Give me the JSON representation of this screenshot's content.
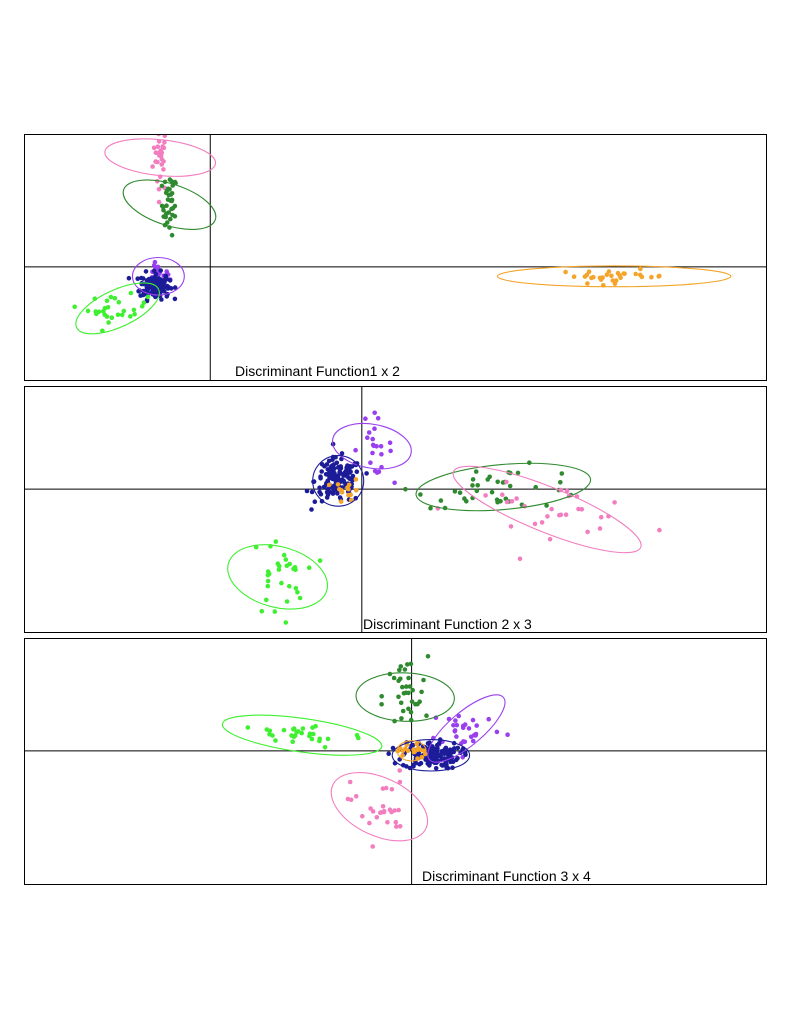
{
  "colors": {
    "navy": "#1c1c99",
    "purple": "#9a3ff0",
    "pink": "#f27ec0",
    "dark_green": "#2f8a2f",
    "light_green": "#3ef02f",
    "orange": "#f4a42a"
  },
  "chart_data": [
    {
      "type": "scatter",
      "title": "Discriminant Function1 x 2",
      "axis_lines": "cross at origin",
      "xlim": [
        -10,
        30
      ],
      "ylim": [
        -6,
        7
      ],
      "groups": [
        {
          "color": "pink",
          "center": [
            -2.7,
            5.8
          ],
          "n": 28,
          "spread": [
            0.2,
            0.9
          ],
          "ellipse": {
            "rx": 0.95,
            "ry": 3.0,
            "angle": -84
          }
        },
        {
          "color": "dark_green",
          "center": [
            -2.2,
            3.3
          ],
          "n": 38,
          "spread": [
            0.2,
            0.8
          ],
          "ellipse": {
            "rx": 1.1,
            "ry": 2.6,
            "angle": -72
          }
        },
        {
          "color": "purple",
          "center": [
            -2.8,
            -0.5
          ],
          "n": 30,
          "spread": [
            0.3,
            0.3
          ],
          "ellipse": {
            "rx": 1.4,
            "ry": 1.0,
            "angle": 0
          }
        },
        {
          "color": "navy",
          "center": [
            -3.0,
            -1.0
          ],
          "n": 140,
          "spread": [
            0.4,
            0.35
          ]
        },
        {
          "color": "light_green",
          "center": [
            -5.0,
            -2.2
          ],
          "n": 28,
          "spread": [
            0.8,
            0.35
          ],
          "ellipse": {
            "rx": 2.4,
            "ry": 1.0,
            "angle": -25
          }
        },
        {
          "color": "orange",
          "center": [
            21.8,
            -0.5
          ],
          "n": 30,
          "spread": [
            1.5,
            0.18
          ],
          "ellipse": {
            "rx": 6.3,
            "ry": 0.55,
            "angle": 0
          }
        }
      ]
    },
    {
      "type": "scatter",
      "title": "Discriminant Function 2 x 3",
      "axis_lines": "cross at origin",
      "xlim": [
        -10,
        12
      ],
      "ylim": [
        -7,
        5
      ],
      "groups": [
        {
          "color": "purple",
          "center": [
            0.3,
            2.1
          ],
          "n": 22,
          "spread": [
            0.3,
            0.7
          ],
          "ellipse": {
            "rx": 0.65,
            "ry": 1.95,
            "angle": -80
          }
        },
        {
          "color": "navy",
          "center": [
            -0.7,
            0.4
          ],
          "n": 140,
          "spread": [
            0.35,
            0.55
          ],
          "ellipse": {
            "rx": 0.75,
            "ry": 1.25,
            "angle": -90
          }
        },
        {
          "color": "orange",
          "center": [
            -0.4,
            -0.1
          ],
          "n": 14,
          "spread": [
            0.2,
            0.3
          ]
        },
        {
          "color": "dark_green",
          "center": [
            4.2,
            0.1
          ],
          "n": 38,
          "spread": [
            1.3,
            0.5
          ],
          "ellipse": {
            "rx": 2.6,
            "ry": 1.1,
            "angle": -5
          }
        },
        {
          "color": "pink",
          "center": [
            5.5,
            -1.0
          ],
          "n": 30,
          "spread": [
            1.4,
            0.6
          ],
          "ellipse": {
            "rx": 3.0,
            "ry": 1.1,
            "angle": 22
          }
        },
        {
          "color": "light_green",
          "center": [
            -2.5,
            -4.3
          ],
          "n": 30,
          "spread": [
            0.4,
            1.0
          ],
          "ellipse": {
            "rx": 0.9,
            "ry": 2.5,
            "angle": -75
          }
        }
      ]
    },
    {
      "type": "scatter",
      "title": "Discriminant Function 3 x 4",
      "axis_lines": "cross at origin",
      "xlim": [
        -12,
        11
      ],
      "ylim": [
        -6,
        5
      ],
      "groups": [
        {
          "color": "dark_green",
          "center": [
            -0.2,
            2.4
          ],
          "n": 35,
          "spread": [
            0.35,
            0.9
          ],
          "ellipse": {
            "rx": 0.75,
            "ry": 2.2,
            "angle": -88
          }
        },
        {
          "color": "light_green",
          "center": [
            -3.4,
            0.7
          ],
          "n": 30,
          "spread": [
            1.0,
            0.3
          ],
          "ellipse": {
            "rx": 2.5,
            "ry": 0.75,
            "angle": 8
          }
        },
        {
          "color": "purple",
          "center": [
            1.7,
            1.0
          ],
          "n": 30,
          "spread": [
            0.6,
            0.45
          ],
          "ellipse": {
            "rx": 1.5,
            "ry": 0.75,
            "angle": -40
          }
        },
        {
          "color": "navy",
          "center": [
            0.6,
            -0.2
          ],
          "n": 140,
          "spread": [
            0.45,
            0.3
          ],
          "ellipse": {
            "rx": 1.2,
            "ry": 0.7,
            "angle": 0
          }
        },
        {
          "color": "orange",
          "center": [
            0.0,
            0.0
          ],
          "n": 18,
          "spread": [
            0.22,
            0.22
          ],
          "ellipse": {
            "rx": 0.45,
            "ry": 0.45,
            "angle": 0
          }
        },
        {
          "color": "pink",
          "center": [
            -1.0,
            -2.5
          ],
          "n": 28,
          "spread": [
            0.45,
            0.8
          ],
          "ellipse": {
            "rx": 0.9,
            "ry": 2.3,
            "angle": -65
          }
        }
      ]
    }
  ]
}
